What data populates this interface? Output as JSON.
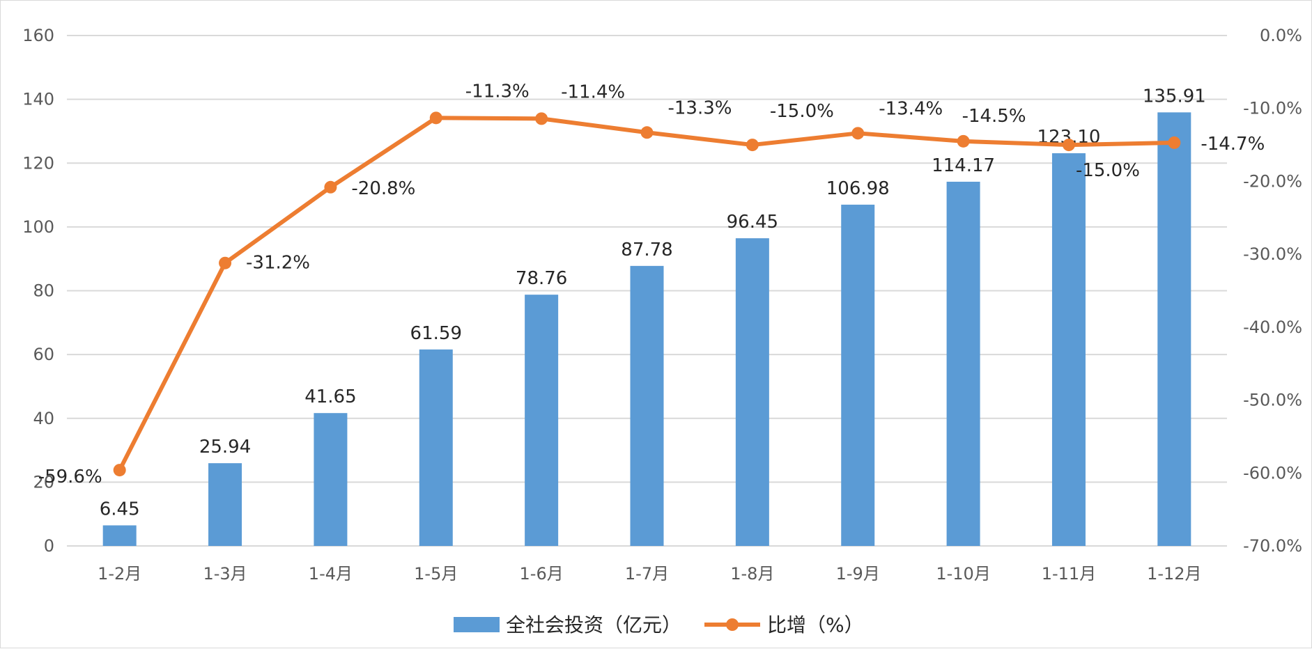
{
  "chart_data": {
    "type": "bar",
    "categories": [
      "1-2月",
      "1-3月",
      "1-4月",
      "1-5月",
      "1-6月",
      "1-7月",
      "1-8月",
      "1-9月",
      "1-10月",
      "1-11月",
      "1-12月"
    ],
    "series": [
      {
        "name": "全社会投资（亿元）",
        "type": "bar",
        "axis": "left",
        "color": "#5b9bd5",
        "values": [
          6.45,
          25.94,
          41.65,
          61.59,
          78.76,
          87.78,
          96.45,
          106.98,
          114.17,
          123.1,
          135.91
        ],
        "labels": [
          "6.45",
          "25.94",
          "41.65",
          "61.59",
          "78.76",
          "87.78",
          "96.45",
          "106.98",
          "114.17",
          "123.10",
          "135.91"
        ]
      },
      {
        "name": "比增（%）",
        "type": "line",
        "axis": "right",
        "color": "#ed7d31",
        "values": [
          -59.6,
          -31.2,
          -20.8,
          -11.3,
          -11.4,
          -13.3,
          -15.0,
          -13.4,
          -14.5,
          -15.0,
          -14.7
        ],
        "labels": [
          "-59.6%",
          "-31.2%",
          "-20.8%",
          "-11.3%",
          "-11.4%",
          "-13.3%",
          "-15.0%",
          "-13.4%",
          "-14.5%",
          "-15.0%",
          "-14.7%"
        ]
      }
    ],
    "left_axis": {
      "ylim": [
        0,
        160
      ],
      "ticks": [
        0,
        20,
        40,
        60,
        80,
        100,
        120,
        140,
        160
      ],
      "tick_labels": [
        "0",
        "20",
        "40",
        "60",
        "80",
        "100",
        "120",
        "140",
        "160"
      ]
    },
    "right_axis": {
      "ylim": [
        -70,
        0
      ],
      "ticks": [
        -70,
        -60,
        -50,
        -40,
        -30,
        -20,
        -10,
        0
      ],
      "tick_labels": [
        "-70.0%",
        "-60.0%",
        "-50.0%",
        "-40.0%",
        "-30.0%",
        "-20.0%",
        "-10.0%",
        "0.0%"
      ]
    },
    "grid": true,
    "legend_position": "bottom",
    "legend": [
      "全社会投资（亿元）",
      "比增（%）"
    ]
  }
}
